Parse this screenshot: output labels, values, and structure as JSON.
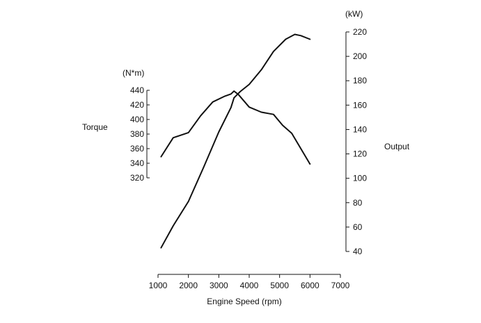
{
  "chart_data": {
    "type": "line",
    "xlabel": "Engine Speed (rpm)",
    "xlim": [
      1000,
      7000
    ],
    "xticks": [
      1000,
      2000,
      3000,
      4000,
      5000,
      6000,
      7000
    ],
    "y_left": {
      "label": "Torque",
      "unit": "(N*m)",
      "ylim": [
        320,
        440
      ],
      "ticks": [
        320,
        340,
        360,
        380,
        400,
        420,
        440
      ]
    },
    "y_right": {
      "label": "Output",
      "unit": "(kW)",
      "ylim": [
        40,
        220
      ],
      "ticks": [
        40,
        60,
        80,
        100,
        120,
        140,
        160,
        180,
        200,
        220
      ]
    },
    "series": [
      {
        "axis": "left",
        "x": [
          1100,
          1500,
          2000,
          2400,
          2800,
          3200,
          3400,
          3500,
          3650,
          4000,
          4400,
          4800,
          5100,
          5400,
          6000
        ],
        "values": [
          349,
          375,
          382,
          405,
          424,
          432,
          435,
          439,
          434,
          417,
          410,
          407,
          392,
          381,
          339
        ]
      },
      {
        "axis": "right",
        "x": [
          1100,
          1500,
          2000,
          2500,
          3000,
          3400,
          3500,
          3700,
          4000,
          4400,
          4800,
          5200,
          5500,
          5700,
          6000
        ],
        "values": [
          43,
          61,
          81,
          109,
          138,
          158,
          166,
          171,
          177,
          189,
          204,
          214,
          218,
          217,
          214
        ]
      }
    ],
    "grid": false,
    "legend": "none"
  }
}
